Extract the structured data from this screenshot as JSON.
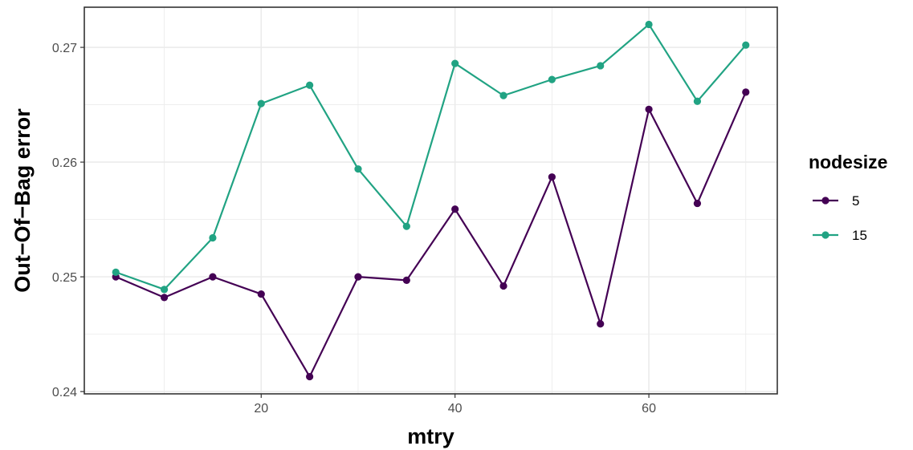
{
  "chart_data": {
    "type": "line",
    "title": "",
    "xlabel": "mtry",
    "ylabel": "Out−Of−Bag error",
    "x": [
      5,
      10,
      15,
      20,
      25,
      30,
      35,
      40,
      45,
      50,
      55,
      60,
      65,
      70
    ],
    "xlim": [
      1.75,
      73.25
    ],
    "ylim": [
      0.2398,
      0.2735
    ],
    "x_ticks": [
      {
        "value": 20,
        "label": "20"
      },
      {
        "value": 40,
        "label": "40"
      },
      {
        "value": 60,
        "label": "60"
      }
    ],
    "y_ticks": [
      {
        "value": 0.24,
        "label": "0.24"
      },
      {
        "value": 0.25,
        "label": "0.25"
      },
      {
        "value": 0.26,
        "label": "0.26"
      },
      {
        "value": 0.27,
        "label": "0.27"
      }
    ],
    "grid": true,
    "legend": {
      "title": "nodesize",
      "position": "right"
    },
    "series": [
      {
        "name": "5",
        "color": "#440154",
        "values": [
          0.25,
          0.2482,
          0.25,
          0.2485,
          0.2413,
          0.25,
          0.2497,
          0.2559,
          0.2492,
          0.2587,
          0.2459,
          0.2646,
          0.2564,
          0.2661
        ]
      },
      {
        "name": "15",
        "color": "#21a383",
        "values": [
          0.2504,
          0.2489,
          0.2534,
          0.2651,
          0.2667,
          0.2594,
          0.2544,
          0.2686,
          0.2658,
          0.2672,
          0.2684,
          0.272,
          0.2653,
          0.2702
        ]
      }
    ]
  }
}
